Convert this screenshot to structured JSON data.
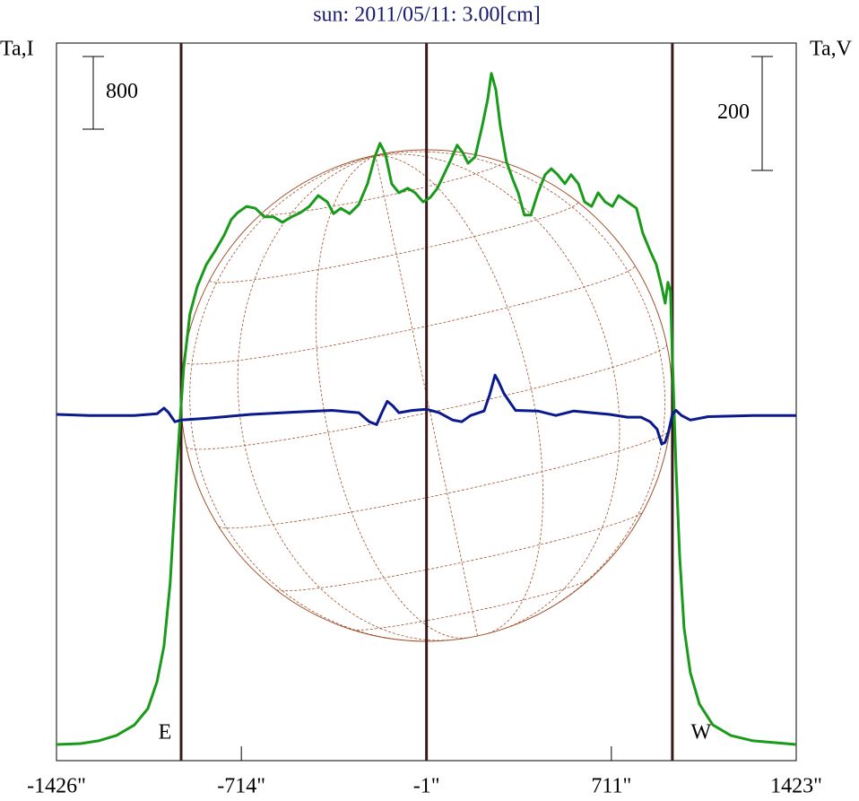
{
  "chart_data": {
    "type": "line",
    "title": "sun: 2011/05/11: 3.00[cm]",
    "ylabel": "Ta,I",
    "y2label": "Ta,V",
    "xlim": [
      -1426,
      1423
    ],
    "xticks": [
      {
        "value": -1426,
        "label": "-1426\""
      },
      {
        "value": -714,
        "label": "-714\""
      },
      {
        "value": -1,
        "label": "-1\""
      },
      {
        "value": 711,
        "label": "711\""
      },
      {
        "value": 1423,
        "label": "1423\""
      }
    ],
    "ylim": [
      -178,
      7724
    ],
    "y2lim": [
      -606,
      654
    ],
    "vlines": [
      {
        "x": -946,
        "label": "E"
      },
      {
        "x": -1
      },
      {
        "x": 946,
        "label": "W"
      }
    ],
    "scale_bars": [
      {
        "value": 800,
        "axis": "y"
      },
      {
        "value": 200,
        "axis": "y2"
      }
    ],
    "series": [
      {
        "color": "#1a9a1a",
        "axis": "y",
        "x": [
          -1426,
          -1333,
          -1264,
          -1195,
          -1126,
          -1074,
          -1039,
          -1012,
          -988,
          -970,
          -953,
          -936,
          -912,
          -884,
          -849,
          -815,
          -780,
          -753,
          -729,
          -694,
          -660,
          -625,
          -590,
          -556,
          -521,
          -487,
          -452,
          -418,
          -383,
          -359,
          -331,
          -297,
          -262,
          -228,
          -200,
          -180,
          -159,
          -135,
          -107,
          -73,
          -45,
          -14,
          14,
          41,
          66,
          90,
          117,
          138,
          159,
          186,
          214,
          235,
          249,
          266,
          283,
          307,
          331,
          352,
          376,
          401,
          428,
          456,
          480,
          504,
          532,
          556,
          584,
          608,
          635,
          660,
          687,
          715,
          739,
          773,
          808,
          832,
          860,
          884,
          905,
          918,
          929,
          939,
          946,
          960,
          974,
          991,
          1015,
          1050,
          1102,
          1171,
          1257,
          1423
        ],
        "values": [
          0,
          10,
          40,
          100,
          215,
          395,
          690,
          1085,
          1780,
          2665,
          3460,
          4150,
          4740,
          5040,
          5285,
          5435,
          5610,
          5780,
          5855,
          5925,
          5905,
          5810,
          5810,
          5750,
          5810,
          5855,
          5925,
          6045,
          5975,
          5845,
          5905,
          5845,
          5945,
          6175,
          6470,
          6620,
          6500,
          6175,
          6075,
          6125,
          6075,
          5975,
          6025,
          6125,
          6275,
          6420,
          6600,
          6520,
          6400,
          6470,
          6815,
          7110,
          7390,
          7210,
          6815,
          6420,
          6225,
          6075,
          5830,
          5830,
          6075,
          6275,
          6340,
          6275,
          6175,
          6275,
          6175,
          5975,
          5925,
          6075,
          5975,
          5925,
          6045,
          5975,
          5905,
          5630,
          5435,
          5285,
          5040,
          4860,
          5090,
          4990,
          4250,
          3060,
          2075,
          1285,
          790,
          445,
          215,
          100,
          40,
          0
        ]
      },
      {
        "color": "#0a1a8c",
        "axis": "y2",
        "x": [
          -1426,
          -1299,
          -1126,
          -1039,
          -1012,
          -994,
          -970,
          -946,
          -849,
          -677,
          -504,
          -366,
          -262,
          -221,
          -193,
          -173,
          -152,
          -131,
          -107,
          -55,
          0,
          48,
          100,
          135,
          169,
          221,
          242,
          263,
          276,
          297,
          325,
          342,
          428,
          497,
          566,
          635,
          704,
          773,
          825,
          860,
          887,
          905,
          918,
          932,
          946,
          960,
          981,
          1015,
          1084,
          1257,
          1423
        ],
        "values": [
          2,
          0,
          0,
          3,
          13,
          5,
          -11,
          -8,
          -5,
          2,
          6,
          9,
          5,
          -11,
          -16,
          5,
          25,
          17,
          5,
          9,
          11,
          5,
          -8,
          -11,
          0,
          8,
          36,
          71,
          60,
          39,
          20,
          9,
          8,
          0,
          8,
          5,
          2,
          -3,
          -3,
          -11,
          -24,
          -50,
          -47,
          -27,
          2,
          9,
          0,
          -8,
          -2,
          0,
          0
        ]
      }
    ]
  }
}
